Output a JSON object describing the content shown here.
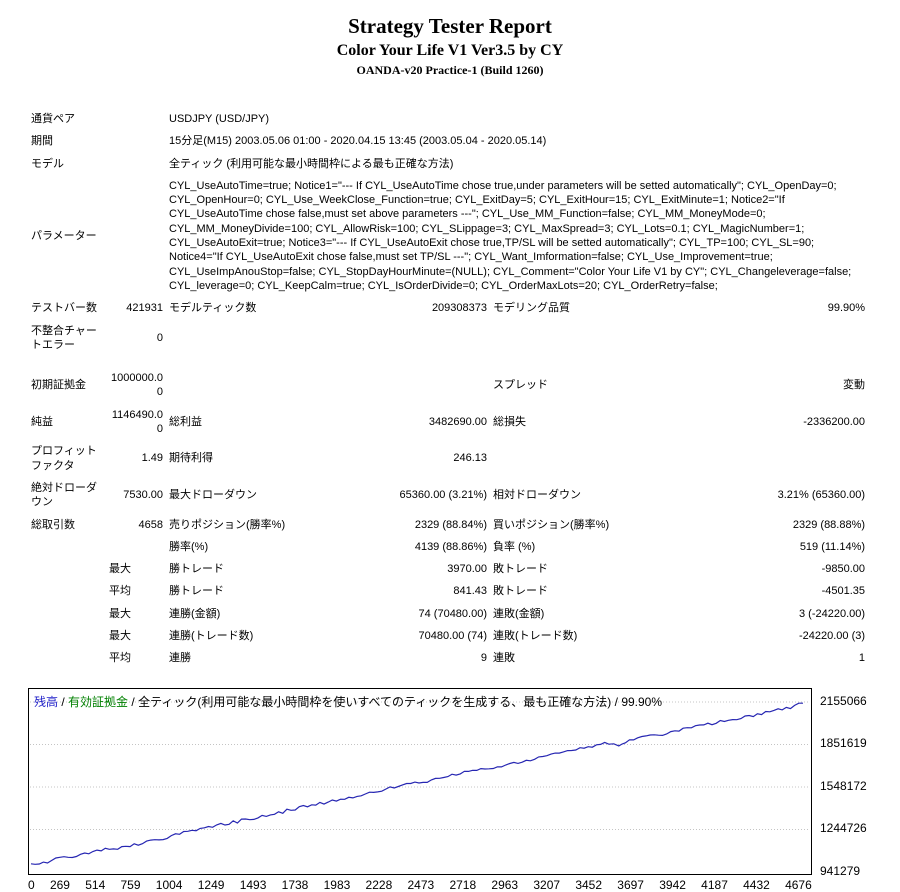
{
  "header": {
    "title": "Strategy Tester Report",
    "subtitle": "Color Your Life V1 Ver3.5 by CY",
    "build": "OANDA-v20 Practice-1 (Build 1260)"
  },
  "table": {
    "symbol": {
      "label": "通貨ペア",
      "value": "USDJPY (USD/JPY)"
    },
    "period": {
      "label": "期間",
      "value": "15分足(M15) 2003.05.06 01:00 - 2020.04.15 13:45 (2003.05.04 - 2020.05.14)"
    },
    "model": {
      "label": "モデル",
      "value": "全ティック (利用可能な最小時間枠による最も正確な方法)"
    },
    "parameters": {
      "label": "パラメーター",
      "value": "CYL_UseAutoTime=true; Notice1=\"--- If CYL_UseAutoTime chose true,under parameters will be setted automatically\"; CYL_OpenDay=0; CYL_OpenHour=0; CYL_Use_WeekClose_Function=true; CYL_ExitDay=5; CYL_ExitHour=15; CYL_ExitMinute=1; Notice2=\"If CYL_UseAutoTime chose false,must set above parameters ---\"; CYL_Use_MM_Function=false; CYL_MM_MoneyMode=0; CYL_MM_MoneyDivide=100; CYL_AllowRisk=100; CYL_SLippage=3; CYL_MaxSpread=3; CYL_Lots=0.1; CYL_MagicNumber=1; CYL_UseAutoExit=true; Notice3=\"--- If CYL_UseAutoExit chose true,TP/SL will be setted automatically\"; CYL_TP=100; CYL_SL=90; Notice4=\"If CYL_UseAutoExit chose false,must set TP/SL ---\"; CYL_Want_Imformation=false; CYL_Use_Improvement=true; CYL_UseImpAnouStop=false; CYL_StopDayHourMinute=(NULL); CYL_Comment=\"Color Your Life V1 by CY\"; CYL_Changeleverage=false; CYL_leverage=0; CYL_KeepCalm=true; CYL_IsOrderDivide=0; CYL_OrderMaxLots=20; CYL_OrderRetry=false;"
    },
    "bars": {
      "label": "テストバー数",
      "value": "421931"
    },
    "ticks": {
      "label": "モデルティック数",
      "value": "209308373"
    },
    "quality": {
      "label": "モデリング品質",
      "value": "99.90%"
    },
    "mismatched": {
      "label": "不整合チャートエラー",
      "value": "0"
    },
    "deposit": {
      "label": "初期証拠金",
      "value": "1000000.00"
    },
    "spread": {
      "label": "スプレッド",
      "value": "変動"
    },
    "net_profit": {
      "label": "純益",
      "value": "1146490.00"
    },
    "gross_profit": {
      "label": "総利益",
      "value": "3482690.00"
    },
    "gross_loss": {
      "label": "総損失",
      "value": "-2336200.00"
    },
    "profit_factor": {
      "label": "プロフィットファクタ",
      "value": "1.49"
    },
    "expected_payoff": {
      "label": "期待利得",
      "value": "246.13"
    },
    "absolute_dd": {
      "label": "絶対ドローダウン",
      "value": "7530.00"
    },
    "maximal_dd": {
      "label": "最大ドローダウン",
      "value": "65360.00 (3.21%)"
    },
    "relative_dd": {
      "label": "相対ドローダウン",
      "value": "3.21% (65360.00)"
    },
    "total_trades": {
      "label": "総取引数",
      "value": "4658"
    },
    "short_positions": {
      "label": "売りポジション(勝率%)",
      "value": "2329 (88.84%)"
    },
    "long_positions": {
      "label": "買いポジション(勝率%)",
      "value": "2329 (88.88%)"
    },
    "profit_trades": {
      "label": "勝率(%)",
      "value": "4139 (88.86%)"
    },
    "loss_trades": {
      "label": "負率 (%)",
      "value": "519 (11.14%)"
    },
    "largest_label": "最大",
    "average_label": "平均",
    "largest_profit": {
      "label": "勝トレード",
      "value": "3970.00"
    },
    "largest_loss": {
      "label": "敗トレード",
      "value": "-9850.00"
    },
    "average_profit": {
      "label": "勝トレード",
      "value": "841.43"
    },
    "average_loss": {
      "label": "敗トレード",
      "value": "-4501.35"
    },
    "max_consec_wins": {
      "label": "連勝(金額)",
      "value": "74 (70480.00)"
    },
    "max_consec_losses": {
      "label": "連敗(金額)",
      "value": "3 (-24220.00)"
    },
    "max_consec_profit": {
      "label": "連勝(トレード数)",
      "value": "70480.00 (74)"
    },
    "max_consec_loss": {
      "label": "連敗(トレード数)",
      "value": "-24220.00 (3)"
    },
    "avg_consec_wins": {
      "label": "連勝",
      "value": "9"
    },
    "avg_consec_losses": {
      "label": "連敗",
      "value": "1"
    }
  },
  "chart": {
    "legend": {
      "balance": "残高",
      "sep1": " / ",
      "equity": "有効証拠金",
      "sep2": " / ",
      "desc": "全ティック(利用可能な最小時間枠を使いすべてのティックを生成する、最も正確な方法)",
      "sep3": " / ",
      "quality": "99.90%"
    },
    "colors": {
      "balance_line": "#2626b2",
      "balance_text": "#1e1ec8",
      "equity_text": "#008000",
      "grid_line": "#c4c4c4",
      "border": "#000000"
    }
  },
  "chart_data": {
    "type": "line",
    "title": "残高推移 (Balance curve)",
    "xlim": [
      0,
      4676
    ],
    "ylim": [
      941279,
      2155066
    ],
    "x_ticks": [
      0,
      269,
      514,
      759,
      1004,
      1249,
      1493,
      1738,
      1983,
      2228,
      2473,
      2718,
      2963,
      3207,
      3452,
      3697,
      3942,
      4187,
      4432,
      4676
    ],
    "y_ticks": [
      2155066,
      1851619,
      1548172,
      1244726,
      941279
    ],
    "grid": "horizontal-dotted",
    "legend_position": "top-left-inside",
    "series": [
      {
        "name": "残高",
        "points": [
          [
            0,
            1000000
          ],
          [
            100,
            1013000
          ],
          [
            200,
            1046000
          ],
          [
            300,
            1062000
          ],
          [
            400,
            1090000
          ],
          [
            500,
            1107000
          ],
          [
            600,
            1127000
          ],
          [
            700,
            1160000
          ],
          [
            800,
            1181000
          ],
          [
            900,
            1214000
          ],
          [
            1000,
            1237000
          ],
          [
            1100,
            1263000
          ],
          [
            1200,
            1289000
          ],
          [
            1300,
            1316000
          ],
          [
            1400,
            1340000
          ],
          [
            1500,
            1366000
          ],
          [
            1600,
            1391000
          ],
          [
            1700,
            1417000
          ],
          [
            1800,
            1444000
          ],
          [
            1900,
            1467000
          ],
          [
            2000,
            1494000
          ],
          [
            2100,
            1519000
          ],
          [
            2200,
            1543000
          ],
          [
            2300,
            1568000
          ],
          [
            2400,
            1592000
          ],
          [
            2500,
            1618000
          ],
          [
            2600,
            1642000
          ],
          [
            2700,
            1667000
          ],
          [
            2800,
            1691000
          ],
          [
            2900,
            1715000
          ],
          [
            3000,
            1739000
          ],
          [
            3100,
            1763000
          ],
          [
            3200,
            1787000
          ],
          [
            3300,
            1812000
          ],
          [
            3400,
            1837000
          ],
          [
            3500,
            1862000
          ],
          [
            3560,
            1849000
          ],
          [
            3600,
            1874000
          ],
          [
            3700,
            1899000
          ],
          [
            3800,
            1922000
          ],
          [
            3900,
            1946000
          ],
          [
            4000,
            1969000
          ],
          [
            4100,
            1993000
          ],
          [
            4200,
            2017000
          ],
          [
            4300,
            2042000
          ],
          [
            4400,
            2067000
          ],
          [
            4500,
            2092000
          ],
          [
            4600,
            2118000
          ],
          [
            4676,
            2146490
          ]
        ]
      }
    ]
  }
}
